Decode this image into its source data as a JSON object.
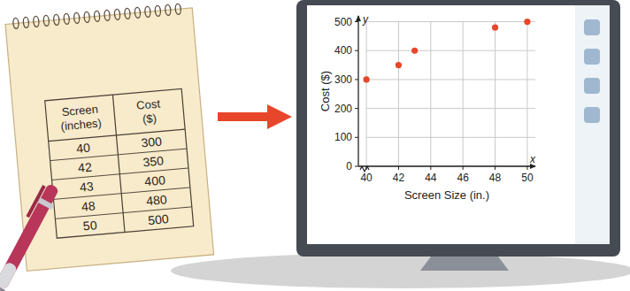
{
  "chart_data": {
    "type": "scatter",
    "xlabel": "Screen Size (in.)",
    "ylabel": "Cost ($)",
    "axis_letters": {
      "x": "x",
      "y": "y"
    },
    "x": [
      40,
      42,
      43,
      48,
      50
    ],
    "values": [
      300,
      350,
      400,
      480,
      500
    ],
    "color": "#e8462a",
    "marker": "circle",
    "xlim": [
      39.5,
      50.5
    ],
    "ylim": [
      0,
      520
    ],
    "xticks": [
      40,
      42,
      44,
      46,
      48,
      50
    ],
    "yticks": [
      0,
      100,
      200,
      300,
      400,
      500
    ],
    "grid": true
  },
  "table": {
    "header": [
      "Screen (inches)",
      "Cost ($)"
    ],
    "rows": [
      [
        40,
        300
      ],
      [
        42,
        350
      ],
      [
        43,
        400
      ],
      [
        48,
        480
      ],
      [
        50,
        500
      ]
    ]
  }
}
